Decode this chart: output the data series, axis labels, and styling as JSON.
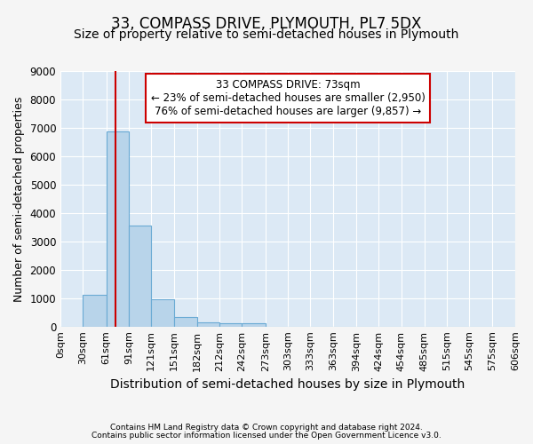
{
  "title": "33, COMPASS DRIVE, PLYMOUTH, PL7 5DX",
  "subtitle": "Size of property relative to semi-detached houses in Plymouth",
  "xlabel": "Distribution of semi-detached houses by size in Plymouth",
  "ylabel": "Number of semi-detached properties",
  "footnote1": "Contains HM Land Registry data © Crown copyright and database right 2024.",
  "footnote2": "Contains public sector information licensed under the Open Government Licence v3.0.",
  "bar_edges": [
    0,
    30,
    61,
    91,
    121,
    151,
    182,
    212,
    242,
    273,
    303,
    333,
    363,
    394,
    424,
    454,
    485,
    515,
    545,
    575,
    606
  ],
  "bar_heights": [
    0,
    1130,
    6880,
    3560,
    975,
    320,
    145,
    100,
    100,
    0,
    0,
    0,
    0,
    0,
    0,
    0,
    0,
    0,
    0,
    0
  ],
  "bar_color": "#b8d4ea",
  "bar_edge_color": "#6aaad4",
  "ylim": [
    0,
    9000
  ],
  "yticks": [
    0,
    1000,
    2000,
    3000,
    4000,
    5000,
    6000,
    7000,
    8000,
    9000
  ],
  "property_size": 73,
  "property_line_color": "#cc0000",
  "ann_line1": "33 COMPASS DRIVE: 73sqm",
  "ann_line2": "← 23% of semi-detached houses are smaller (2,950)",
  "ann_line3": "76% of semi-detached houses are larger (9,857) →",
  "annotation_box_color": "#ffffff",
  "annotation_box_edge_color": "#cc0000",
  "fig_bg_color": "#f5f5f5",
  "plot_bg_color": "#dce9f5",
  "grid_color": "#ffffff",
  "title_fontsize": 12,
  "subtitle_fontsize": 10,
  "tick_label_fontsize": 8,
  "ylabel_fontsize": 9,
  "xlabel_fontsize": 10
}
